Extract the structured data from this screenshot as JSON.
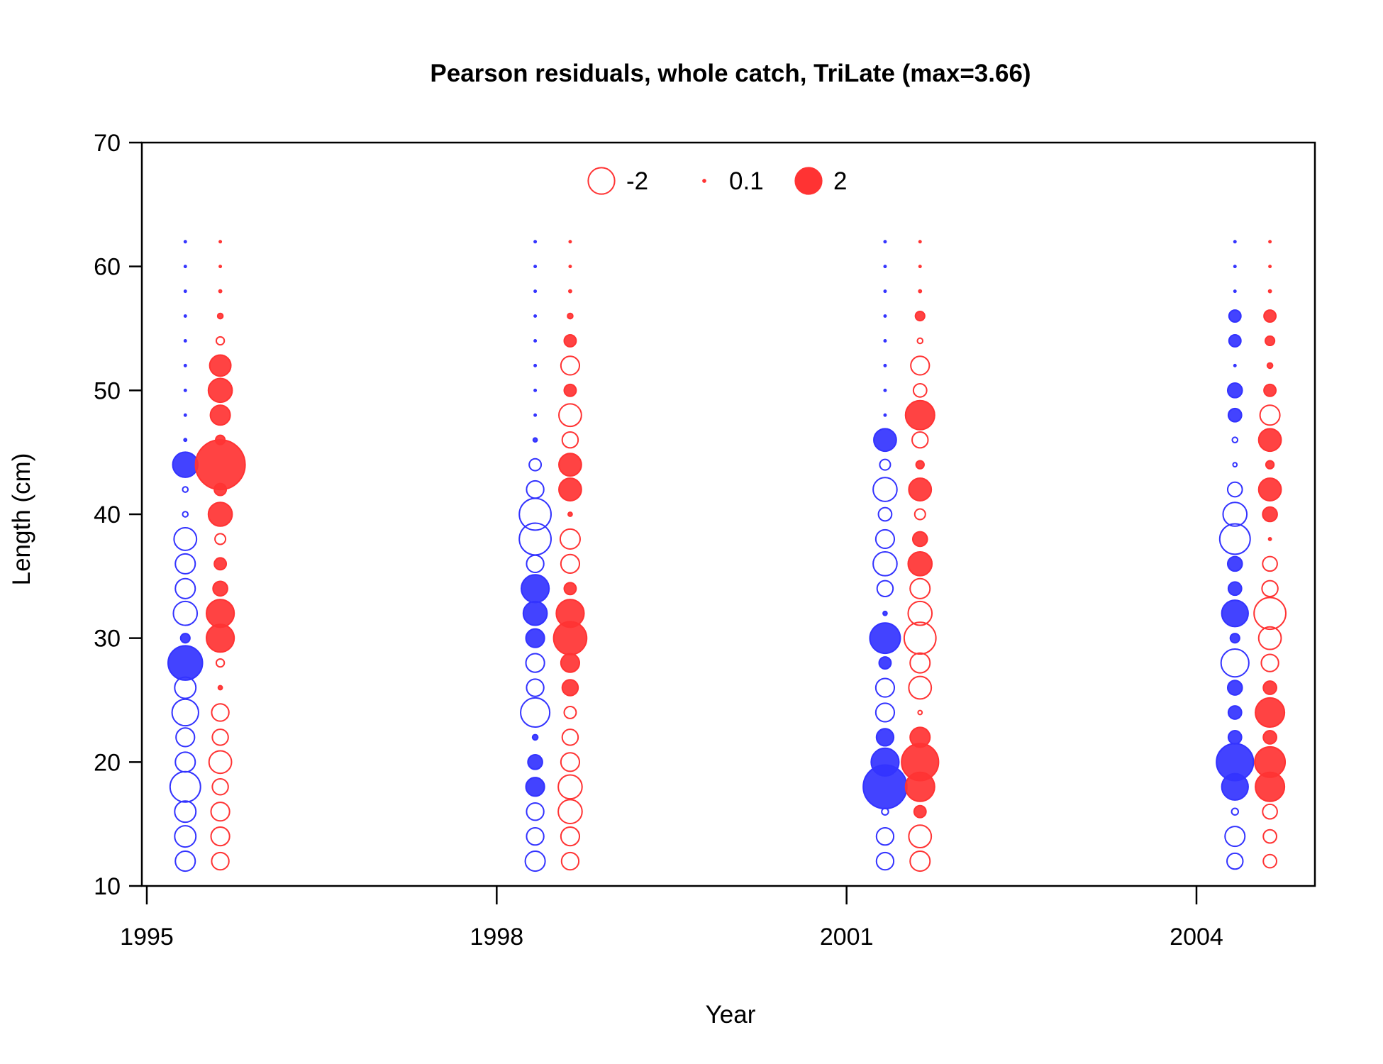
{
  "chart_data": {
    "type": "scatter",
    "title": "Pearson residuals, whole catch, TriLate (max=3.66)",
    "xlabel": "Year",
    "ylabel": "Length (cm)",
    "xlim": [
      1995,
      2005.6
    ],
    "ylim": [
      10,
      70
    ],
    "x_ticks": [
      1995,
      1998,
      2001,
      2004
    ],
    "y_ticks": [
      10,
      20,
      30,
      40,
      50,
      60,
      70
    ],
    "legend": {
      "position": "top-center",
      "entries": [
        {
          "label": "-2",
          "value": -2
        },
        {
          "label": "0.1",
          "value": 0.1
        },
        {
          "label": "2",
          "value": 2
        }
      ]
    },
    "grid": false,
    "colors": {
      "blue": "#3333ff",
      "red": "#ff3333"
    },
    "lengths": [
      12,
      14,
      16,
      18,
      20,
      22,
      24,
      26,
      28,
      30,
      32,
      34,
      36,
      38,
      40,
      42,
      44,
      46,
      48,
      50,
      52,
      54,
      56,
      58,
      60,
      62
    ],
    "series": [
      {
        "name": "",
        "color": "blue",
        "x": 1995.33,
        "values": [
          -1.4,
          -1.5,
          -1.5,
          -2.2,
          -1.4,
          -1.3,
          -1.9,
          -1.5,
          2.5,
          0.6,
          -1.7,
          -1.4,
          -1.4,
          -1.6,
          -0.3,
          -0.3,
          1.8,
          0.1,
          0.05,
          0.05,
          0.05,
          0.05,
          0.05,
          0.05,
          0.05,
          0.05
        ]
      },
      {
        "name": "",
        "color": "red",
        "x": 1995.63,
        "values": [
          -1.2,
          -1.3,
          -1.3,
          -1.1,
          -1.6,
          -1.1,
          -1.2,
          0.2,
          -0.5,
          2.0,
          2.0,
          1.0,
          0.8,
          -0.7,
          1.7,
          0.8,
          3.66,
          0.6,
          1.4,
          1.7,
          1.5,
          -0.5,
          0.3,
          0.1,
          0.05,
          0.05
        ]
      },
      {
        "name": "",
        "color": "blue",
        "x": 1998.33,
        "values": [
          -1.4,
          -1.2,
          -1.2,
          1.3,
          1.0,
          0.3,
          -2.1,
          -1.2,
          -1.3,
          1.3,
          1.7,
          2.0,
          -1.2,
          -2.3,
          -2.3,
          -1.2,
          -0.8,
          0.2,
          0.05,
          0.05,
          0.05,
          0.05,
          0.05,
          0.05,
          0.05,
          0.05
        ]
      },
      {
        "name": "",
        "color": "red",
        "x": 1998.63,
        "values": [
          -1.2,
          -1.3,
          -1.7,
          -1.7,
          -1.3,
          -1.1,
          -0.8,
          1.1,
          1.3,
          2.4,
          2.0,
          0.8,
          -1.3,
          -1.4,
          0.2,
          1.6,
          1.6,
          -1.1,
          -1.6,
          0.8,
          -1.3,
          0.8,
          0.3,
          0.1,
          0.05,
          0.05
        ]
      },
      {
        "name": "",
        "color": "blue",
        "x": 2001.33,
        "values": [
          -1.2,
          -1.2,
          -0.4,
          3.2,
          2.0,
          1.2,
          -1.3,
          -1.3,
          0.8,
          2.2,
          0.2,
          -1.1,
          -1.7,
          -1.3,
          -0.9,
          -1.7,
          -0.7,
          1.6,
          0.05,
          0.05,
          0.05,
          0.05,
          0.05,
          0.05,
          0.05,
          0.05
        ]
      },
      {
        "name": "",
        "color": "red",
        "x": 2001.63,
        "values": [
          -1.4,
          -1.6,
          0.8,
          2.1,
          2.7,
          1.4,
          -0.2,
          -1.6,
          -1.4,
          -2.3,
          -1.7,
          -1.4,
          1.7,
          1.0,
          -0.7,
          1.6,
          0.5,
          -1.1,
          2.1,
          -0.9,
          -1.3,
          -0.3,
          0.6,
          0.1,
          0.05,
          0.05
        ]
      },
      {
        "name": "",
        "color": "blue",
        "x": 2004.33,
        "values": [
          -1.1,
          -1.4,
          -0.4,
          1.9,
          2.7,
          0.9,
          0.9,
          1.0,
          -2.0,
          0.6,
          1.9,
          0.9,
          1.0,
          -2.2,
          -1.7,
          -1.0,
          -0.2,
          -0.3,
          0.9,
          1.0,
          0.05,
          0.8,
          0.8,
          0.05,
          0.05,
          0.05
        ]
      },
      {
        "name": "",
        "color": "red",
        "x": 2004.63,
        "values": [
          -0.9,
          -0.9,
          -1.0,
          2.1,
          2.2,
          0.9,
          2.1,
          0.9,
          -1.2,
          -1.6,
          -2.3,
          -1.1,
          -1.0,
          0.1,
          1.0,
          1.6,
          0.5,
          1.6,
          -1.4,
          0.8,
          0.3,
          0.6,
          0.8,
          0.1,
          0.05,
          0.05
        ]
      }
    ]
  }
}
